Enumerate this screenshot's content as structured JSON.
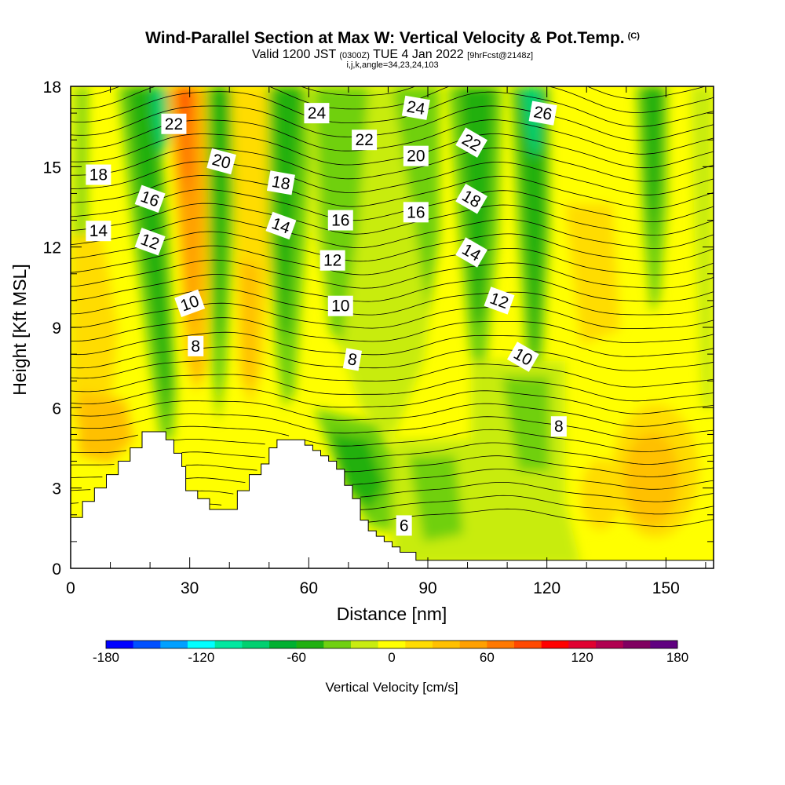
{
  "header": {
    "title": "Wind-Parallel Section at Max W: Vertical Velocity & Pot.Temp.",
    "copyright": "(C)",
    "valid_prefix": "Valid 1200 JST",
    "valid_utc": "(0300Z)",
    "valid_date": "TUE 4 Jan 2022",
    "forecast": "[9hrFcst@2148z]",
    "indices": "i,j,k,angle=34,23,24,103"
  },
  "chart_data": {
    "type": "heatmap",
    "xlabel": "Distance [nm]",
    "ylabel": "Height [Kft MSL]",
    "xlim": [
      0,
      162
    ],
    "ylim": [
      0,
      18
    ],
    "x_ticks": [
      0,
      30,
      60,
      90,
      120,
      150
    ],
    "y_ticks": [
      0,
      3,
      6,
      9,
      12,
      15,
      18
    ],
    "colorbar": {
      "title": "Vertical Velocity [cm/s]",
      "range": [
        -180,
        180
      ],
      "tick_labels": [
        "-180",
        "-120",
        "-60",
        "0",
        "60",
        "120",
        "180"
      ],
      "colors": [
        "#0000ff",
        "#0050ff",
        "#00a0ff",
        "#00ffff",
        "#00e8a0",
        "#00d070",
        "#00b030",
        "#20b010",
        "#70d010",
        "#c8ec10",
        "#ffff00",
        "#ffdc00",
        "#ffc000",
        "#ffa000",
        "#ff7800",
        "#ff4800",
        "#ff0000",
        "#e00030",
        "#b00050",
        "#800060",
        "#600080"
      ]
    },
    "terrain_kft": [
      [
        0,
        1.9
      ],
      [
        3,
        2.5
      ],
      [
        6,
        3.0
      ],
      [
        9,
        3.5
      ],
      [
        12,
        4.0
      ],
      [
        15,
        4.5
      ],
      [
        18,
        5.1
      ],
      [
        22,
        5.1
      ],
      [
        24,
        4.8
      ],
      [
        26,
        4.3
      ],
      [
        28,
        3.8
      ],
      [
        29,
        2.9
      ],
      [
        32,
        2.6
      ],
      [
        35,
        2.2
      ],
      [
        40,
        2.2
      ],
      [
        42,
        2.9
      ],
      [
        45,
        3.5
      ],
      [
        48,
        3.9
      ],
      [
        50,
        4.5
      ],
      [
        52,
        4.8
      ],
      [
        57,
        4.8
      ],
      [
        59,
        4.6
      ],
      [
        61,
        4.4
      ],
      [
        63,
        4.2
      ],
      [
        65,
        4.0
      ],
      [
        67,
        3.7
      ],
      [
        69,
        3.1
      ],
      [
        71,
        2.6
      ],
      [
        73,
        1.8
      ],
      [
        75,
        1.4
      ],
      [
        77,
        1.2
      ],
      [
        79,
        1.0
      ],
      [
        81,
        0.8
      ],
      [
        83,
        0.6
      ],
      [
        85,
        0.6
      ],
      [
        87,
        0.3
      ],
      [
        162,
        0.3
      ]
    ],
    "theta_contours_label": "Pot.Temp.",
    "theta_labels": [
      {
        "text": "22",
        "x": 26,
        "y": 16.6,
        "rot": 0
      },
      {
        "text": "18",
        "x": 7,
        "y": 14.7,
        "rot": 0
      },
      {
        "text": "14",
        "x": 7,
        "y": 12.6,
        "rot": 0
      },
      {
        "text": "16",
        "x": 20,
        "y": 13.8,
        "rot": 20
      },
      {
        "text": "12",
        "x": 20,
        "y": 12.2,
        "rot": 20
      },
      {
        "text": "20",
        "x": 38,
        "y": 15.2,
        "rot": 15
      },
      {
        "text": "10",
        "x": 30,
        "y": 9.9,
        "rot": -20
      },
      {
        "text": "8",
        "x": 31.5,
        "y": 8.3,
        "rot": 0
      },
      {
        "text": "24",
        "x": 62,
        "y": 17.0,
        "rot": 0
      },
      {
        "text": "18",
        "x": 53,
        "y": 14.4,
        "rot": 10
      },
      {
        "text": "14",
        "x": 53,
        "y": 12.8,
        "rot": 20
      },
      {
        "text": "22",
        "x": 74,
        "y": 16.0,
        "rot": 0
      },
      {
        "text": "16",
        "x": 68,
        "y": 13.0,
        "rot": 0
      },
      {
        "text": "12",
        "x": 66,
        "y": 11.5,
        "rot": 0
      },
      {
        "text": "10",
        "x": 68,
        "y": 9.8,
        "rot": 0
      },
      {
        "text": "8",
        "x": 71,
        "y": 7.8,
        "rot": 10
      },
      {
        "text": "24",
        "x": 87,
        "y": 17.2,
        "rot": 10
      },
      {
        "text": "20",
        "x": 87,
        "y": 15.4,
        "rot": 0
      },
      {
        "text": "16",
        "x": 87,
        "y": 13.3,
        "rot": 0
      },
      {
        "text": "22",
        "x": 101,
        "y": 15.9,
        "rot": 30
      },
      {
        "text": "18",
        "x": 101,
        "y": 13.8,
        "rot": 30
      },
      {
        "text": "14",
        "x": 101,
        "y": 11.8,
        "rot": 30
      },
      {
        "text": "12",
        "x": 108,
        "y": 10.0,
        "rot": 20
      },
      {
        "text": "10",
        "x": 114,
        "y": 7.9,
        "rot": 30
      },
      {
        "text": "26",
        "x": 119,
        "y": 17.0,
        "rot": 10
      },
      {
        "text": "8",
        "x": 123,
        "y": 5.3,
        "rot": 0
      },
      {
        "text": "6",
        "x": 84,
        "y": 1.6,
        "rot": 0
      }
    ]
  }
}
